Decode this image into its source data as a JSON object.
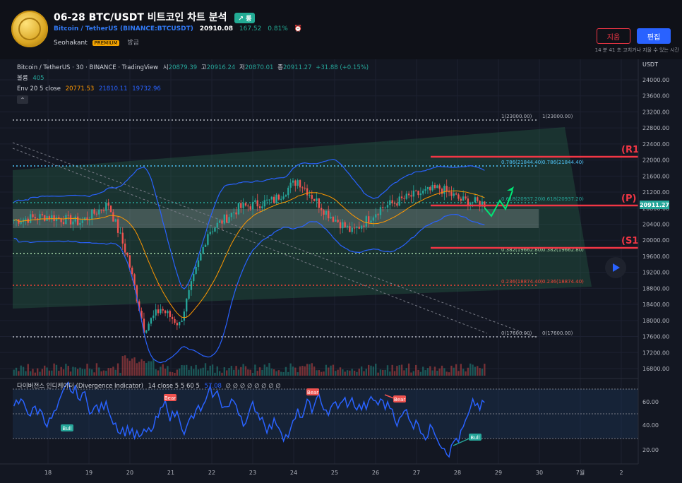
{
  "header": {
    "title": "06-28 BTC/USDT 비트코인 차트 분석",
    "badge": "↗ 롱",
    "symbol_full": "Bitcoin / TetherUS (BINANCE:BTCUSDT)",
    "price": "20910.08",
    "change": "167.52",
    "change_pct": "0.81%",
    "alarm_icon": "alarm-clock-icon",
    "author": "Seohakant",
    "author_badge": "PREMIUM",
    "posted": "방금",
    "delete_label": "지움",
    "edit_label": "편집",
    "edit_note": "14 분 41 초 고치거나 지울 수 있는 시간"
  },
  "legend": {
    "line1": {
      "symbol": "Bitcoin / TetherUS · 30 · BINANCE · TradingView",
      "o_label": "시",
      "o": "20879.39",
      "h_label": "고",
      "h": "20916.24",
      "l_label": "저",
      "l": "20870.01",
      "c_label": "종",
      "c": "20911.27",
      "chg": "+31.88 (+0.15%)"
    },
    "volume_label": "볼륨",
    "volume": "405",
    "env_label": "Env 20 5 close",
    "env_mid": "20771.53",
    "env_up": "21810.11",
    "env_low": "19732.96",
    "collapse_icon": "chevron-up-icon"
  },
  "indicator": {
    "label": "다이버전스 인디케이터 (Divergence Indicator)",
    "params": "14 close 5 5 60 5",
    "value": "57.08",
    "tail": "∅ ∅ ∅ ∅ ∅ ∅ ∅ ∅",
    "bull": "Bull",
    "bear": "Bear",
    "axis": [
      "60.00",
      "40.00",
      "20.00"
    ]
  },
  "price_axis": {
    "unit": "USDT",
    "ticks": [
      "24000.00",
      "23600.00",
      "23200.00",
      "22800.00",
      "22400.00",
      "22000.00",
      "21600.00",
      "21200.00",
      "20800.00",
      "20400.00",
      "20000.00",
      "19600.00",
      "19200.00",
      "18800.00",
      "18400.00",
      "18000.00",
      "17600.00",
      "17200.00",
      "16800.00"
    ],
    "last_price": "20911.27"
  },
  "time_axis": [
    "18",
    "19",
    "20",
    "21",
    "22",
    "23",
    "24",
    "25",
    "26",
    "27",
    "28",
    "29",
    "30",
    "7월",
    "2"
  ],
  "fib": [
    {
      "label": "1(23000.00)",
      "label2": "1(23000.00)",
      "color": "#b2b5be"
    },
    {
      "label": "0.786(21844.40)",
      "label2": "0.786(21844.40)",
      "color": "#4fc3f7"
    },
    {
      "label": "0.618(20937.20)",
      "label2": "0.618(20937.20)",
      "color": "#26a69a"
    },
    {
      "label": "0.382(19662.80)",
      "label2": "0.382(19662.80)",
      "color": "#a5d6a7"
    },
    {
      "label": "0.236(18874.40)",
      "label2": "0.236(18874.40)",
      "color": "#f44336"
    },
    {
      "label": "0(17600.00)",
      "label2": "0(17600.00)",
      "color": "#b2b5be"
    }
  ],
  "levels": {
    "r1": "(R1",
    "p": "(P)",
    "s1": "(S1)"
  },
  "colors": {
    "up": "#26a69a",
    "down": "#ef5350",
    "accent": "#2962ff",
    "red_level": "#f23645"
  },
  "play_icon": "play-icon"
}
